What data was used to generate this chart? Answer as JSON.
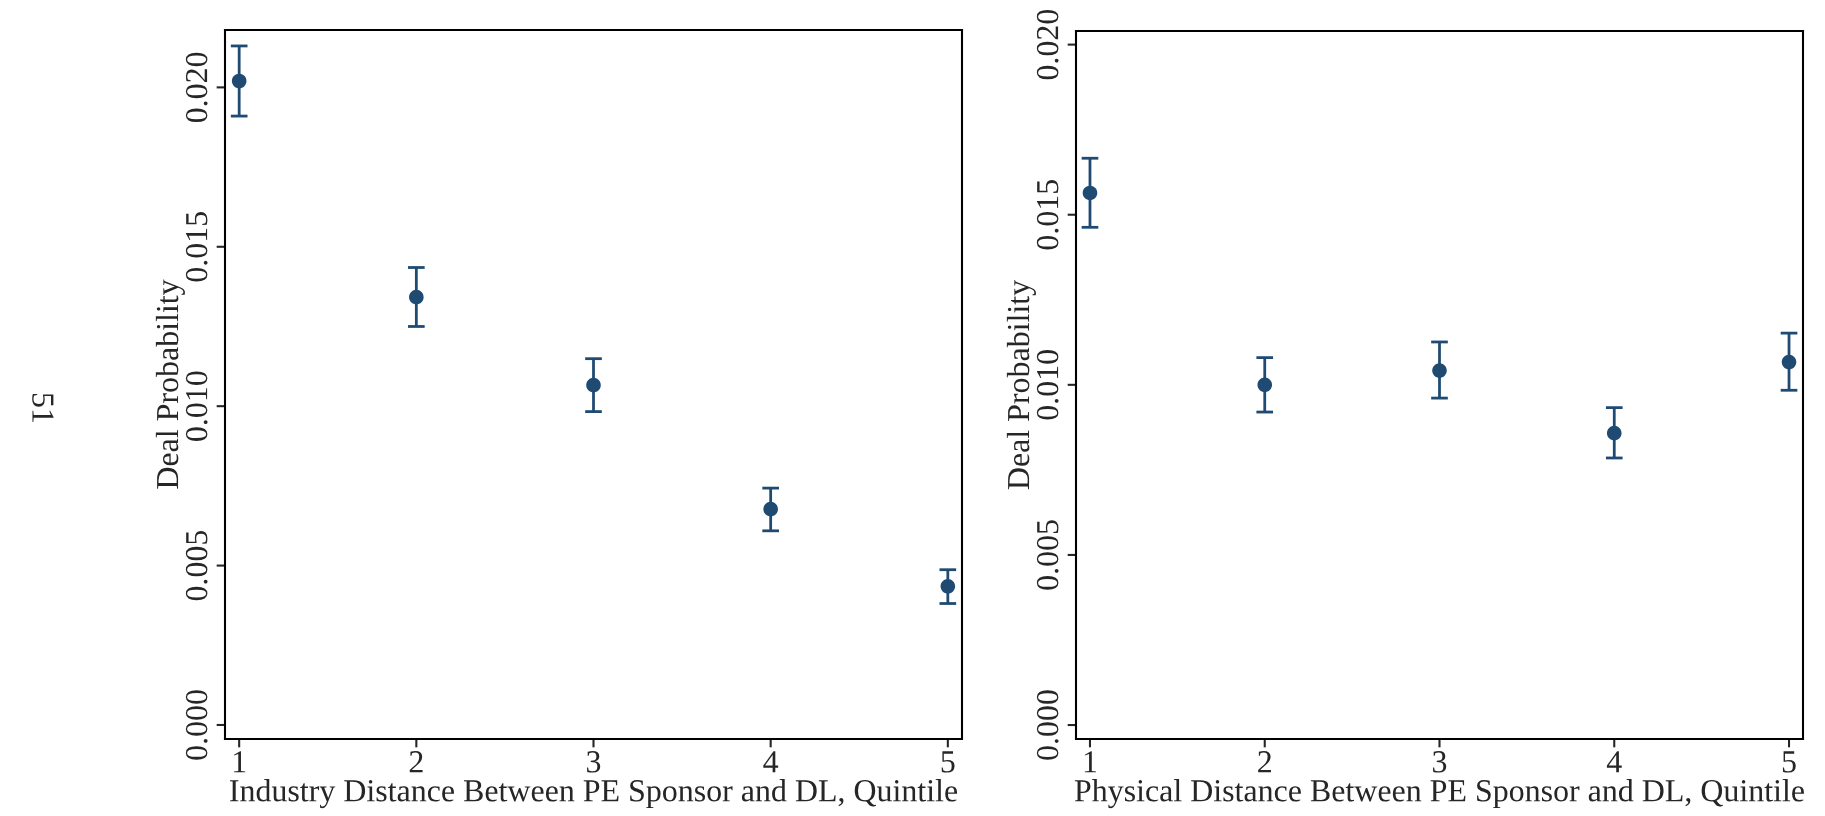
{
  "chart_data": [
    {
      "type": "scatter",
      "xlabel": "Industry Distance Between PE Sponsor and DL, Quintile",
      "ylabel": "Deal Probability",
      "annotations": [
        "51"
      ],
      "x": [
        1,
        2,
        3,
        4,
        5
      ],
      "xlim": [
        0.92,
        5.08
      ],
      "xticks": [
        1,
        2,
        3,
        4,
        5
      ],
      "ylim": [
        -0.00044,
        0.0218
      ],
      "yticks": [
        {
          "value": 0,
          "label": "0.000"
        },
        {
          "value": 0.005,
          "label": "0.005"
        },
        {
          "value": 0.01,
          "label": "0.010"
        },
        {
          "value": 0.015,
          "label": "0.015"
        },
        {
          "value": 0.02,
          "label": "0.020"
        }
      ],
      "series": [
        {
          "color": "#1f4a72",
          "values": [
            0.0202,
            0.01342,
            0.01066,
            0.00677,
            0.00435
          ],
          "errors": [
            [
              0.0191,
              0.0213
            ],
            [
              0.0125,
              0.01435
            ],
            [
              0.00983,
              0.01149
            ],
            [
              0.00609,
              0.00743
            ],
            [
              0.00381,
              0.00487
            ]
          ]
        }
      ],
      "marker": "circle",
      "grid": false
    },
    {
      "type": "scatter",
      "xlabel": "Physical Distance Between PE Sponsor and DL, Quintile",
      "ylabel": "Deal Probability",
      "x": [
        1,
        2,
        3,
        4,
        5
      ],
      "xlim": [
        0.92,
        5.08
      ],
      "xticks": [
        1,
        2,
        3,
        4,
        5
      ],
      "ylim": [
        -0.00041,
        0.0204
      ],
      "yticks": [
        {
          "value": 0,
          "label": "0.000"
        },
        {
          "value": 0.005,
          "label": "0.005"
        },
        {
          "value": 0.01,
          "label": "0.010"
        },
        {
          "value": 0.015,
          "label": "0.015"
        },
        {
          "value": 0.02,
          "label": "0.020"
        }
      ],
      "series": [
        {
          "color": "#1f4a72",
          "values": [
            0.01564,
            0.01,
            0.01042,
            0.00858,
            0.01067
          ],
          "errors": [
            [
              0.01463,
              0.01666
            ],
            [
              0.0092,
              0.0108
            ],
            [
              0.00961,
              0.01126
            ],
            [
              0.00785,
              0.00933
            ],
            [
              0.00984,
              0.01152
            ]
          ]
        }
      ],
      "marker": "circle",
      "grid": false
    }
  ]
}
